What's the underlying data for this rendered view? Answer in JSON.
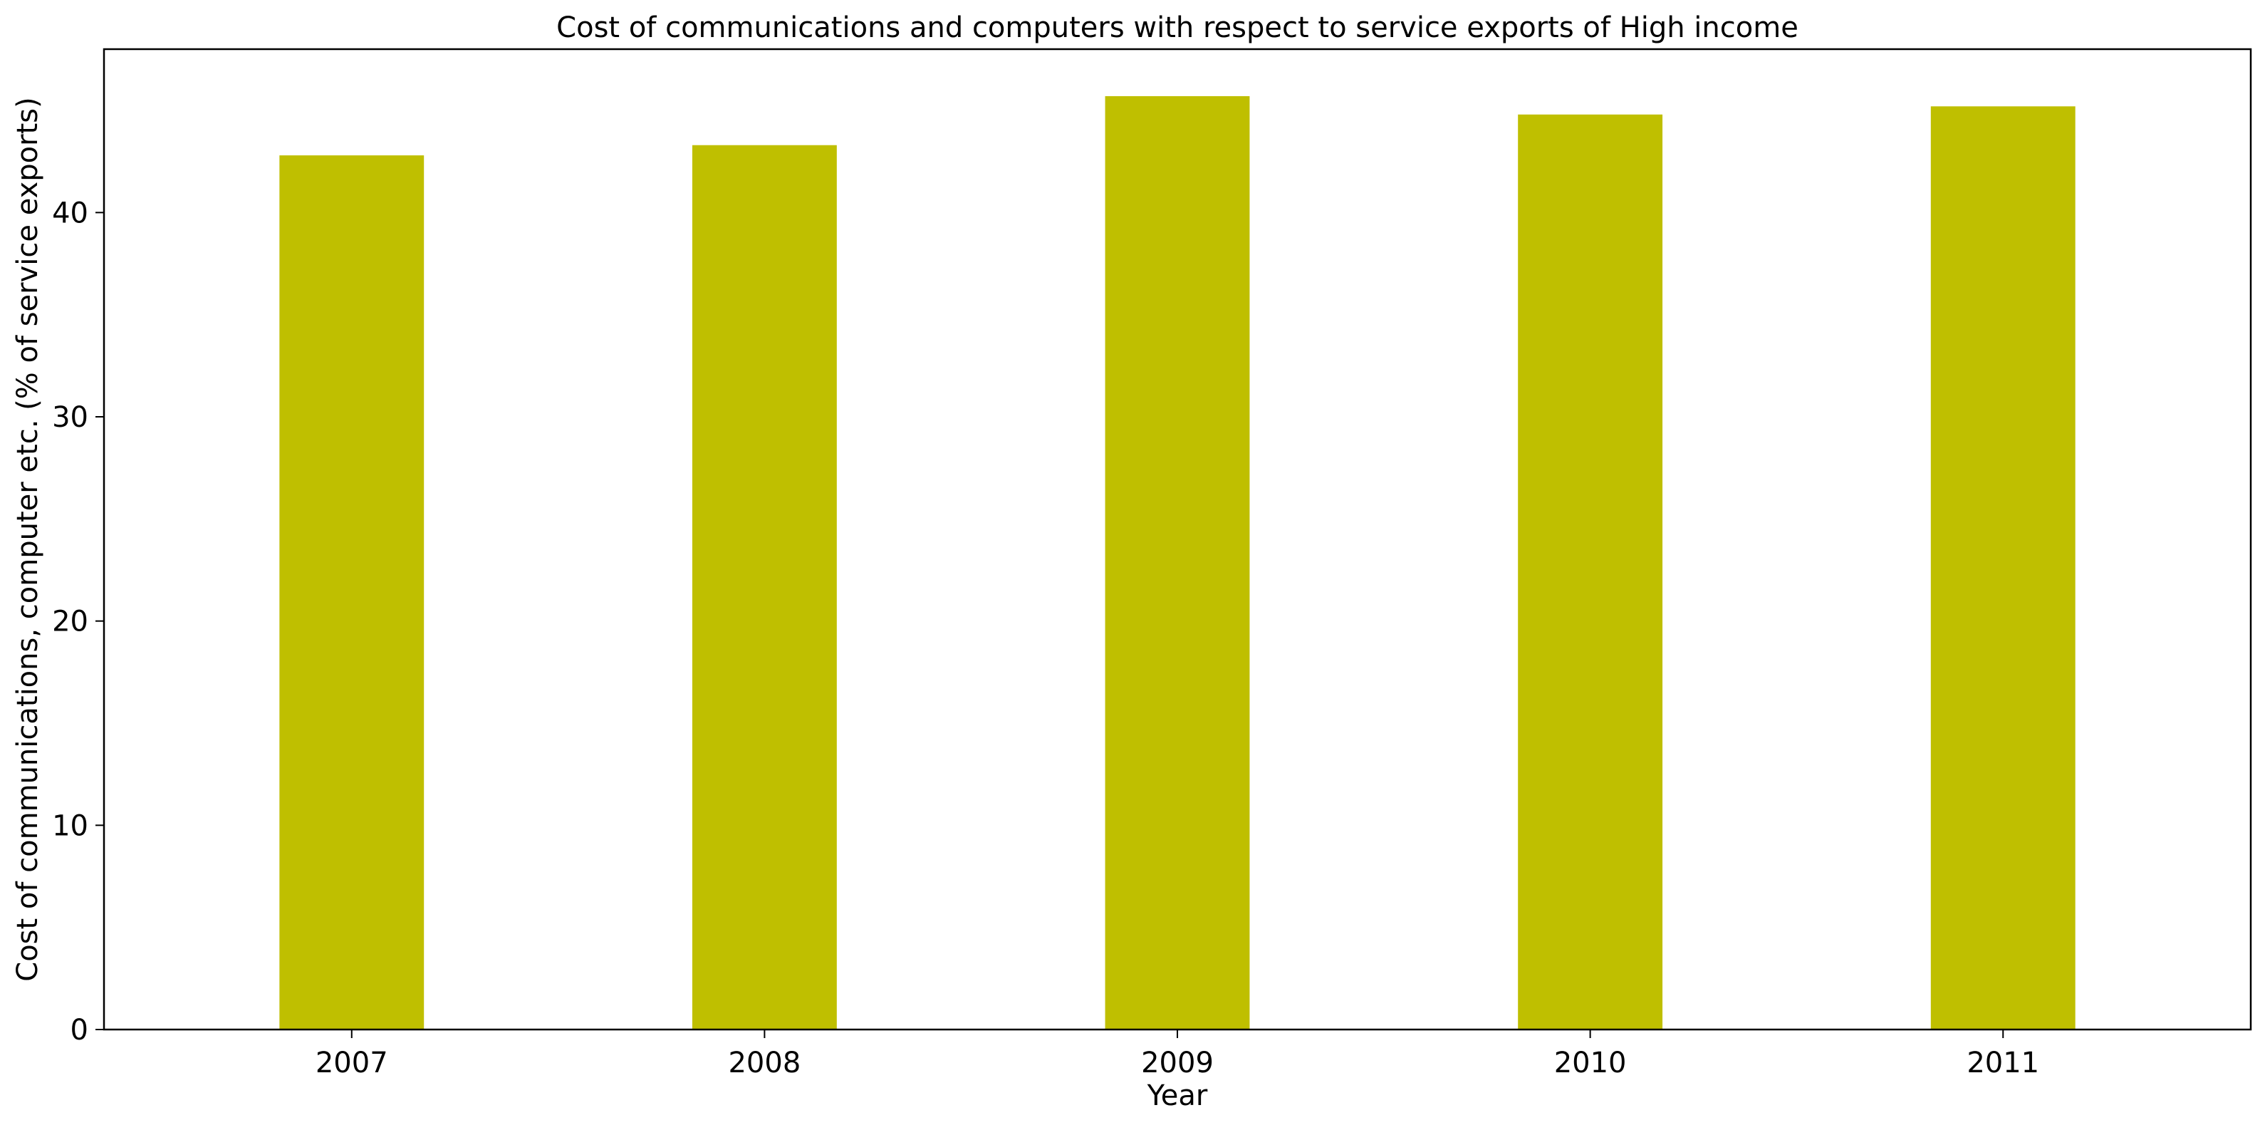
{
  "chart_data": {
    "type": "bar",
    "title": "Cost of communications and computers with respect to service exports of High income",
    "xlabel": "Year",
    "ylabel": "Cost of communications, computer etc. (% of service exports)",
    "categories": [
      "2007",
      "2008",
      "2009",
      "2010",
      "2011"
    ],
    "values": [
      42.8,
      43.3,
      45.7,
      44.8,
      45.2
    ],
    "ylim": [
      0,
      48
    ],
    "yticks": [
      0,
      10,
      20,
      30,
      40
    ],
    "grid": false,
    "legend": "none",
    "bar_color": "#bfbf00"
  }
}
